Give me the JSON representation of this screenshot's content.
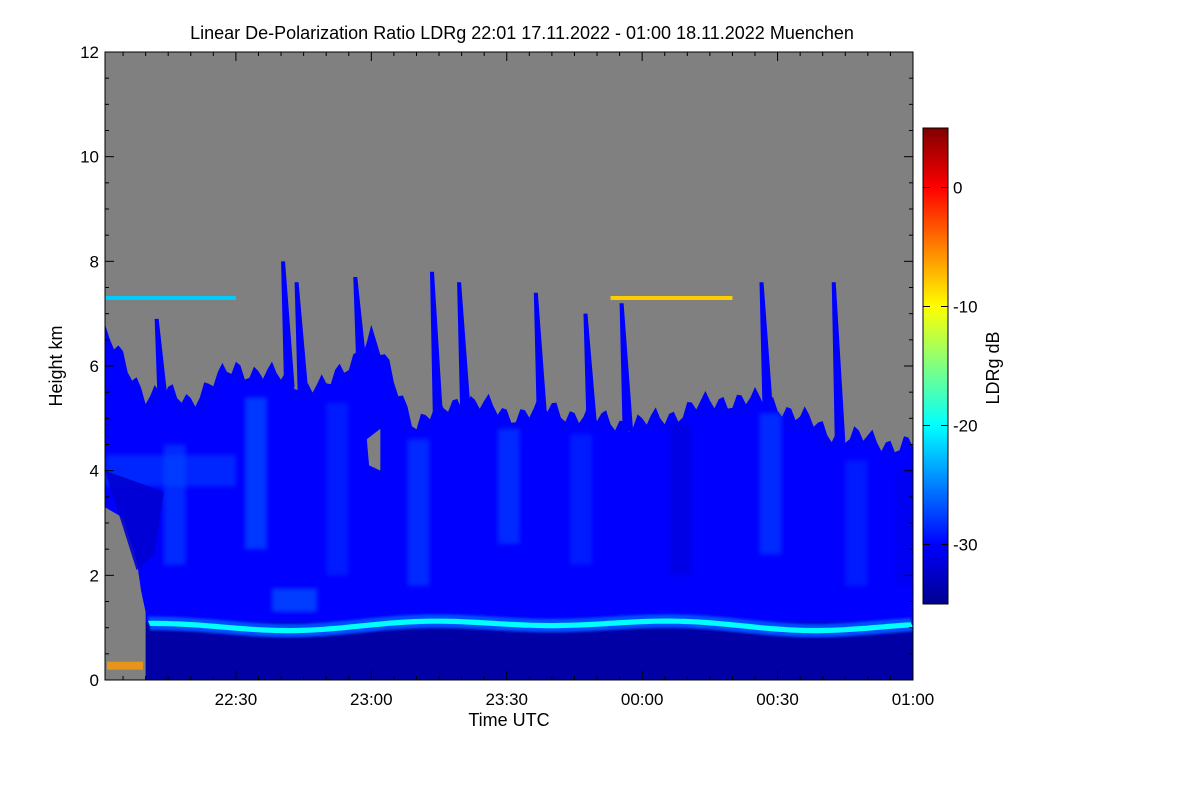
{
  "chart_data": {
    "type": "heatmap",
    "title": "Linear De-Polarization Ratio LDRg   22:01 17.11.2022 - 01:00 18.11.2022 Muenchen",
    "xlabel": "Time UTC",
    "ylabel": "Height km",
    "x_range_minutes_since_2200": [
      1,
      180
    ],
    "xticks": [
      {
        "label": "22:30",
        "minutes_since_2200": 30
      },
      {
        "label": "23:00",
        "minutes_since_2200": 60
      },
      {
        "label": "23:30",
        "minutes_since_2200": 90
      },
      {
        "label": "00:00",
        "minutes_since_2200": 120
      },
      {
        "label": "00:30",
        "minutes_since_2200": 150
      },
      {
        "label": "01:00",
        "minutes_since_2200": 180
      }
    ],
    "ylim": [
      0,
      12
    ],
    "yticks": [
      "0",
      "2",
      "4",
      "6",
      "8",
      "10",
      "12"
    ],
    "colorbar": {
      "label": "LDRg dB",
      "range": [
        -35,
        5
      ],
      "ticks": [
        "0",
        "-10",
        "-20",
        "-30"
      ],
      "colormap": [
        "#00008f",
        "#0000ff",
        "#0080ff",
        "#00ffff",
        "#80ff80",
        "#ffff00",
        "#ff8000",
        "#ff0000",
        "#800000"
      ]
    },
    "no_data_color": "#808080",
    "features": [
      {
        "name": "no data above cloud top",
        "ldr_db": null
      },
      {
        "name": "ice cloud, top height km",
        "x_minutes": [
          1,
          10,
          20,
          30,
          40,
          50,
          60,
          70,
          80,
          90,
          100,
          110,
          120,
          130,
          140,
          150,
          160,
          170,
          180
        ],
        "top_km": [
          6.6,
          5.5,
          5.4,
          6.0,
          5.8,
          5.6,
          6.6,
          4.9,
          5.4,
          5.1,
          5.2,
          5.0,
          4.9,
          5.2,
          5.4,
          5.3,
          4.8,
          4.6,
          4.5
        ],
        "ldr_db": -30
      },
      {
        "name": "boundary layer below",
        "top_km": 1.1,
        "ldr_db": -34
      },
      {
        "name": "aerosol layer top (bright band)",
        "height_km": 1.05,
        "ldr_db": -20
      },
      {
        "name": "layer near 7.3 km, left",
        "height_km": 7.3,
        "x_minutes": [
          1,
          30
        ],
        "ldr_db": -22
      },
      {
        "name": "layer near 7.3 km, right",
        "height_km": 7.3,
        "x_minutes": [
          113,
          140
        ],
        "ldr_db": -8
      }
    ]
  }
}
